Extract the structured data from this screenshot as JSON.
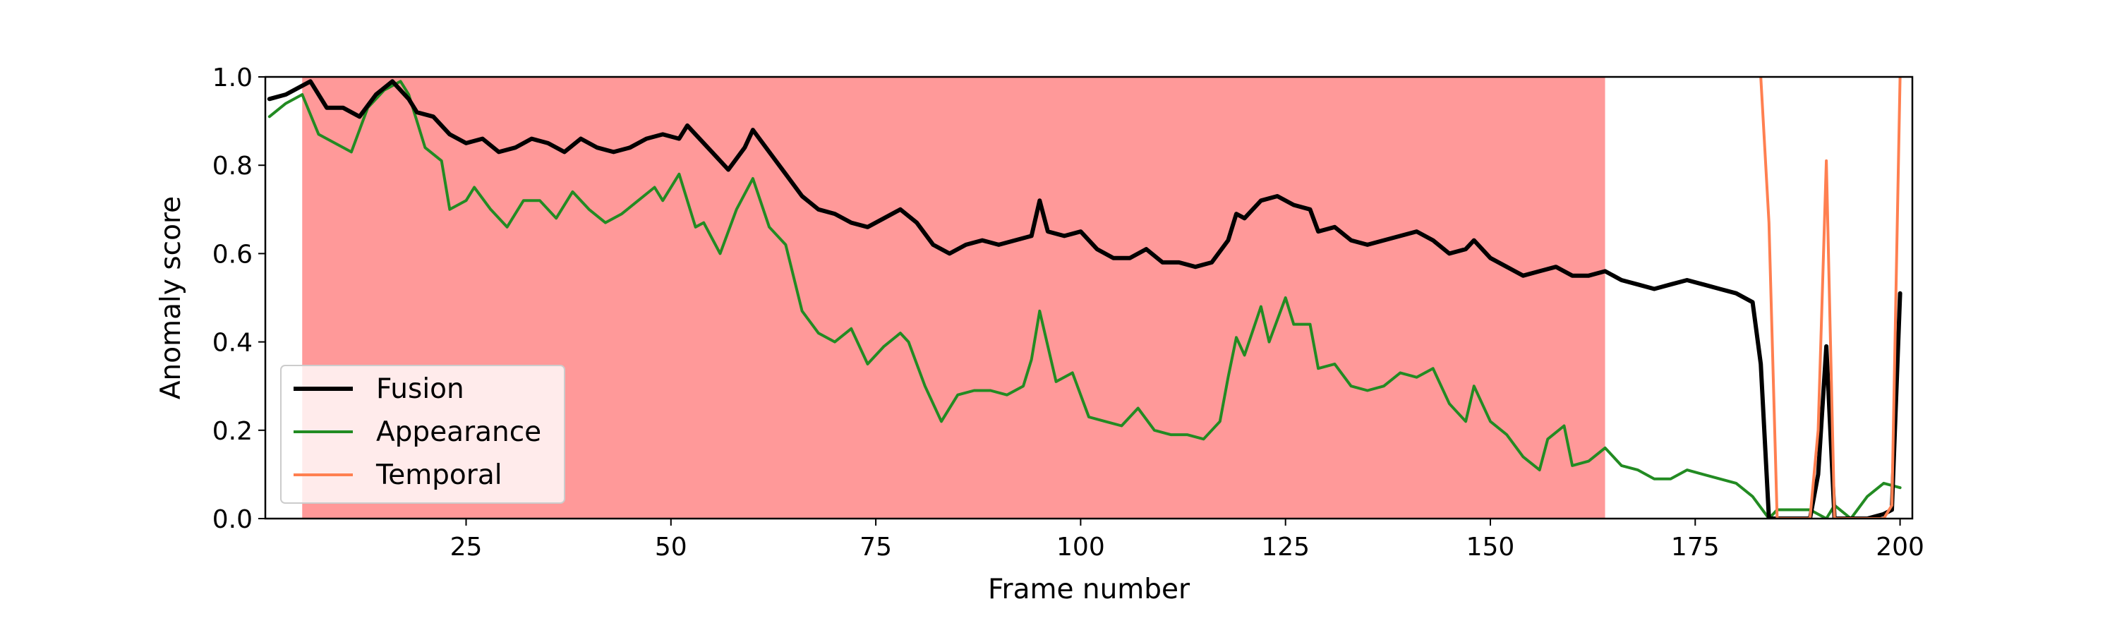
{
  "chart_data": {
    "type": "line",
    "title": "",
    "xlabel": "Frame number",
    "ylabel": "Anomaly score",
    "xlim": [
      0.5,
      201.5
    ],
    "ylim": [
      0,
      1.0
    ],
    "x_ticks": [
      25,
      50,
      75,
      100,
      125,
      150,
      175,
      200
    ],
    "y_ticks": [
      0.0,
      0.2,
      0.4,
      0.6,
      0.8,
      1.0
    ],
    "x_tick_labels": [
      "25",
      "50",
      "75",
      "100",
      "125",
      "150",
      "175",
      "200"
    ],
    "y_tick_labels": [
      "0.0",
      "0.2",
      "0.4",
      "0.6",
      "0.8",
      "1.0"
    ],
    "grid": false,
    "legend_position": "lower-left",
    "shaded_region": {
      "x_start": 5,
      "x_end": 164,
      "color": "#ff9999"
    },
    "series": [
      {
        "name": "Fusion",
        "color": "#000000",
        "points": [
          [
            1,
            0.95
          ],
          [
            3,
            0.96
          ],
          [
            6,
            0.99
          ],
          [
            8,
            0.93
          ],
          [
            10,
            0.93
          ],
          [
            12,
            0.91
          ],
          [
            14,
            0.96
          ],
          [
            16,
            0.99
          ],
          [
            18,
            0.95
          ],
          [
            19,
            0.92
          ],
          [
            21,
            0.91
          ],
          [
            23,
            0.87
          ],
          [
            25,
            0.85
          ],
          [
            27,
            0.86
          ],
          [
            29,
            0.83
          ],
          [
            31,
            0.84
          ],
          [
            33,
            0.86
          ],
          [
            35,
            0.85
          ],
          [
            37,
            0.83
          ],
          [
            39,
            0.86
          ],
          [
            41,
            0.84
          ],
          [
            43,
            0.83
          ],
          [
            45,
            0.84
          ],
          [
            47,
            0.86
          ],
          [
            49,
            0.87
          ],
          [
            51,
            0.86
          ],
          [
            52,
            0.89
          ],
          [
            53,
            0.87
          ],
          [
            55,
            0.83
          ],
          [
            57,
            0.79
          ],
          [
            59,
            0.84
          ],
          [
            60,
            0.88
          ],
          [
            62,
            0.83
          ],
          [
            64,
            0.78
          ],
          [
            66,
            0.73
          ],
          [
            68,
            0.7
          ],
          [
            70,
            0.69
          ],
          [
            72,
            0.67
          ],
          [
            74,
            0.66
          ],
          [
            76,
            0.68
          ],
          [
            78,
            0.7
          ],
          [
            80,
            0.67
          ],
          [
            82,
            0.62
          ],
          [
            84,
            0.6
          ],
          [
            86,
            0.62
          ],
          [
            88,
            0.63
          ],
          [
            90,
            0.62
          ],
          [
            92,
            0.63
          ],
          [
            94,
            0.64
          ],
          [
            95,
            0.72
          ],
          [
            96,
            0.65
          ],
          [
            98,
            0.64
          ],
          [
            100,
            0.65
          ],
          [
            102,
            0.61
          ],
          [
            104,
            0.59
          ],
          [
            106,
            0.59
          ],
          [
            108,
            0.61
          ],
          [
            110,
            0.58
          ],
          [
            112,
            0.58
          ],
          [
            114,
            0.57
          ],
          [
            116,
            0.58
          ],
          [
            118,
            0.63
          ],
          [
            119,
            0.69
          ],
          [
            120,
            0.68
          ],
          [
            122,
            0.72
          ],
          [
            124,
            0.73
          ],
          [
            126,
            0.71
          ],
          [
            128,
            0.7
          ],
          [
            129,
            0.65
          ],
          [
            131,
            0.66
          ],
          [
            133,
            0.63
          ],
          [
            135,
            0.62
          ],
          [
            137,
            0.63
          ],
          [
            139,
            0.64
          ],
          [
            141,
            0.65
          ],
          [
            143,
            0.63
          ],
          [
            145,
            0.6
          ],
          [
            147,
            0.61
          ],
          [
            148,
            0.63
          ],
          [
            150,
            0.59
          ],
          [
            152,
            0.57
          ],
          [
            154,
            0.55
          ],
          [
            156,
            0.56
          ],
          [
            158,
            0.57
          ],
          [
            160,
            0.55
          ],
          [
            162,
            0.55
          ],
          [
            164,
            0.56
          ],
          [
            166,
            0.54
          ],
          [
            168,
            0.53
          ],
          [
            170,
            0.52
          ],
          [
            172,
            0.53
          ],
          [
            174,
            0.54
          ],
          [
            176,
            0.53
          ],
          [
            178,
            0.52
          ],
          [
            180,
            0.51
          ],
          [
            182,
            0.49
          ],
          [
            183,
            0.35
          ],
          [
            184,
            0.0
          ],
          [
            186,
            0.0
          ],
          [
            188,
            0.0
          ],
          [
            189,
            0.0
          ],
          [
            190,
            0.1
          ],
          [
            191,
            0.39
          ],
          [
            192,
            0.0
          ],
          [
            194,
            0.0
          ],
          [
            196,
            0.0
          ],
          [
            198,
            0.01
          ],
          [
            199,
            0.02
          ],
          [
            200,
            0.51
          ]
        ]
      },
      {
        "name": "Appearance",
        "color": "#228b22",
        "points": [
          [
            1,
            0.91
          ],
          [
            3,
            0.94
          ],
          [
            5,
            0.96
          ],
          [
            7,
            0.87
          ],
          [
            9,
            0.85
          ],
          [
            11,
            0.83
          ],
          [
            13,
            0.93
          ],
          [
            15,
            0.97
          ],
          [
            17,
            0.99
          ],
          [
            18,
            0.96
          ],
          [
            20,
            0.84
          ],
          [
            22,
            0.81
          ],
          [
            23,
            0.7
          ],
          [
            25,
            0.72
          ],
          [
            26,
            0.75
          ],
          [
            28,
            0.7
          ],
          [
            30,
            0.66
          ],
          [
            32,
            0.72
          ],
          [
            34,
            0.72
          ],
          [
            36,
            0.68
          ],
          [
            38,
            0.74
          ],
          [
            40,
            0.7
          ],
          [
            42,
            0.67
          ],
          [
            44,
            0.69
          ],
          [
            46,
            0.72
          ],
          [
            48,
            0.75
          ],
          [
            49,
            0.72
          ],
          [
            51,
            0.78
          ],
          [
            53,
            0.66
          ],
          [
            54,
            0.67
          ],
          [
            56,
            0.6
          ],
          [
            58,
            0.7
          ],
          [
            60,
            0.77
          ],
          [
            62,
            0.66
          ],
          [
            64,
            0.62
          ],
          [
            66,
            0.47
          ],
          [
            68,
            0.42
          ],
          [
            70,
            0.4
          ],
          [
            72,
            0.43
          ],
          [
            74,
            0.35
          ],
          [
            76,
            0.39
          ],
          [
            78,
            0.42
          ],
          [
            79,
            0.4
          ],
          [
            81,
            0.3
          ],
          [
            83,
            0.22
          ],
          [
            85,
            0.28
          ],
          [
            87,
            0.29
          ],
          [
            89,
            0.29
          ],
          [
            91,
            0.28
          ],
          [
            93,
            0.3
          ],
          [
            94,
            0.36
          ],
          [
            95,
            0.47
          ],
          [
            97,
            0.31
          ],
          [
            99,
            0.33
          ],
          [
            101,
            0.23
          ],
          [
            103,
            0.22
          ],
          [
            105,
            0.21
          ],
          [
            107,
            0.25
          ],
          [
            109,
            0.2
          ],
          [
            111,
            0.19
          ],
          [
            113,
            0.19
          ],
          [
            115,
            0.18
          ],
          [
            117,
            0.22
          ],
          [
            118,
            0.32
          ],
          [
            119,
            0.41
          ],
          [
            120,
            0.37
          ],
          [
            122,
            0.48
          ],
          [
            123,
            0.4
          ],
          [
            125,
            0.5
          ],
          [
            126,
            0.44
          ],
          [
            128,
            0.44
          ],
          [
            129,
            0.34
          ],
          [
            131,
            0.35
          ],
          [
            133,
            0.3
          ],
          [
            135,
            0.29
          ],
          [
            137,
            0.3
          ],
          [
            139,
            0.33
          ],
          [
            141,
            0.32
          ],
          [
            143,
            0.34
          ],
          [
            145,
            0.26
          ],
          [
            147,
            0.22
          ],
          [
            148,
            0.3
          ],
          [
            150,
            0.22
          ],
          [
            152,
            0.19
          ],
          [
            154,
            0.14
          ],
          [
            156,
            0.11
          ],
          [
            157,
            0.18
          ],
          [
            159,
            0.21
          ],
          [
            160,
            0.12
          ],
          [
            162,
            0.13
          ],
          [
            164,
            0.16
          ],
          [
            166,
            0.12
          ],
          [
            168,
            0.11
          ],
          [
            170,
            0.09
          ],
          [
            172,
            0.09
          ],
          [
            174,
            0.11
          ],
          [
            176,
            0.1
          ],
          [
            178,
            0.09
          ],
          [
            180,
            0.08
          ],
          [
            182,
            0.05
          ],
          [
            184,
            0.0
          ],
          [
            185,
            0.02
          ],
          [
            187,
            0.02
          ],
          [
            189,
            0.02
          ],
          [
            191,
            0.0
          ],
          [
            192,
            0.03
          ],
          [
            194,
            0.0
          ],
          [
            196,
            0.05
          ],
          [
            198,
            0.08
          ],
          [
            200,
            0.07
          ]
        ]
      },
      {
        "name": "Temporal",
        "color": "#ff7f50",
        "points": [
          [
            183,
            1.0
          ],
          [
            184,
            0.67
          ],
          [
            185,
            0.0
          ],
          [
            187,
            0.0
          ],
          [
            189,
            0.0
          ],
          [
            190,
            0.2
          ],
          [
            191,
            0.81
          ],
          [
            192,
            0.0
          ],
          [
            194,
            0.0
          ],
          [
            196,
            0.0
          ],
          [
            198,
            0.0
          ],
          [
            199,
            0.03
          ],
          [
            200,
            1.0
          ]
        ]
      }
    ]
  }
}
